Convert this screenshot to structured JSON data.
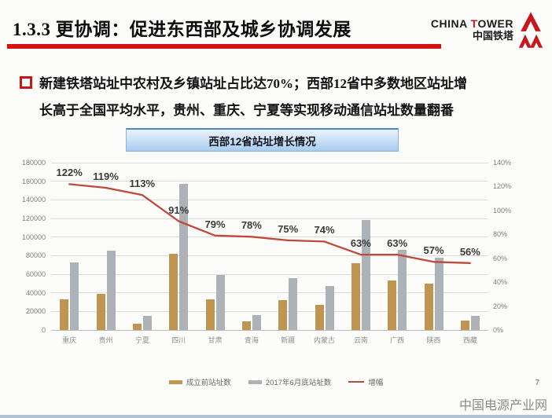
{
  "slide": {
    "title": "1.3.3 更协调：促进东西部及城乡协调发展",
    "page_number": "7",
    "watermark": "中国电源产业网"
  },
  "logo": {
    "en_prefix": "CHINA ",
    "en_accent": "T",
    "en_suffix": "OWER",
    "cn": "中国铁塔",
    "accent_color": "#c8161d"
  },
  "bullet": {
    "line1": "新建铁塔站址中农村及乡镇站址占比达70%；西部12省中多数地区站址增",
    "line2": "长高于全国平均水平，贵州、重庆、宁夏等实现移动通信站址数量翻番"
  },
  "chart_data": {
    "type": "bar",
    "title": "西部12省站址增长情况",
    "categories": [
      "重庆",
      "贵州",
      "宁夏",
      "四川",
      "甘肃",
      "青海",
      "新疆",
      "内蒙古",
      "云南",
      "广西",
      "陕西",
      "西藏"
    ],
    "series": [
      {
        "name": "成立前站址数",
        "type": "bar",
        "color": "#bf9651",
        "values": [
          33000,
          39000,
          7000,
          82000,
          33000,
          9000,
          32000,
          27000,
          72000,
          53000,
          50000,
          10000
        ]
      },
      {
        "name": "2017年6月底站址数",
        "type": "bar",
        "color": "#aeb2b6",
        "values": [
          73000,
          85000,
          15000,
          157000,
          59000,
          16000,
          56000,
          47000,
          118000,
          86000,
          78000,
          15600
        ]
      },
      {
        "name": "增幅",
        "type": "line",
        "color": "#bf4a3b",
        "axis": "right",
        "values": [
          122,
          119,
          113,
          91,
          79,
          78,
          75,
          74,
          63,
          63,
          57,
          56
        ],
        "labels": [
          "122%",
          "119%",
          "113%",
          "91%",
          "79%",
          "78%",
          "75%",
          "74%",
          "63%",
          "63%",
          "57%",
          "56%"
        ]
      }
    ],
    "left_axis": {
      "min": 0,
      "max": 180000,
      "ticks": [
        "0",
        "20000",
        "40000",
        "60000",
        "80000",
        "100000",
        "120000",
        "140000",
        "160000",
        "180000"
      ]
    },
    "right_axis": {
      "min": 0,
      "max": 140,
      "ticks": [
        "0%",
        "20%",
        "40%",
        "60%",
        "80%",
        "100%",
        "120%",
        "140%"
      ]
    },
    "grid": true,
    "legend_position": "bottom"
  }
}
